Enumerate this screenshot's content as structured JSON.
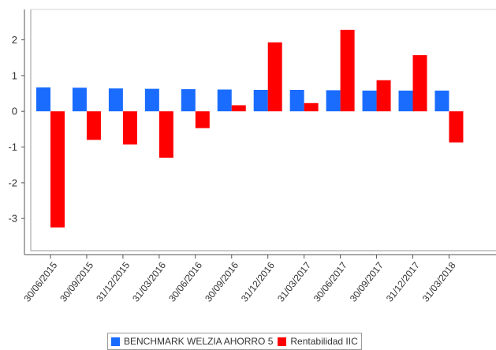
{
  "chart_data": {
    "type": "bar",
    "categories": [
      "30/06/2015",
      "30/09/2015",
      "31/12/2015",
      "31/03/2016",
      "30/06/2016",
      "30/09/2016",
      "31/12/2016",
      "31/03/2017",
      "30/06/2017",
      "30/09/2017",
      "31/12/2017",
      "31/03/2018"
    ],
    "series": [
      {
        "name": "BENCHMARK WELZIA AHORRO 5",
        "color": "#1a6cff",
        "values": [
          0.67,
          0.66,
          0.64,
          0.63,
          0.62,
          0.61,
          0.6,
          0.6,
          0.59,
          0.58,
          0.58,
          0.58
        ]
      },
      {
        "name": "Rentabilidad IIC",
        "color": "#ff0000",
        "values": [
          -3.25,
          -0.8,
          -0.93,
          -1.3,
          -0.47,
          0.17,
          1.93,
          0.23,
          2.28,
          0.87,
          1.57,
          -0.87
        ]
      }
    ],
    "yticks": [
      "2",
      "1",
      "0",
      "-1",
      "-2",
      "-3"
    ],
    "ylim": [
      -3.9,
      2.85
    ],
    "grid": false,
    "legend_position": "bottom"
  }
}
